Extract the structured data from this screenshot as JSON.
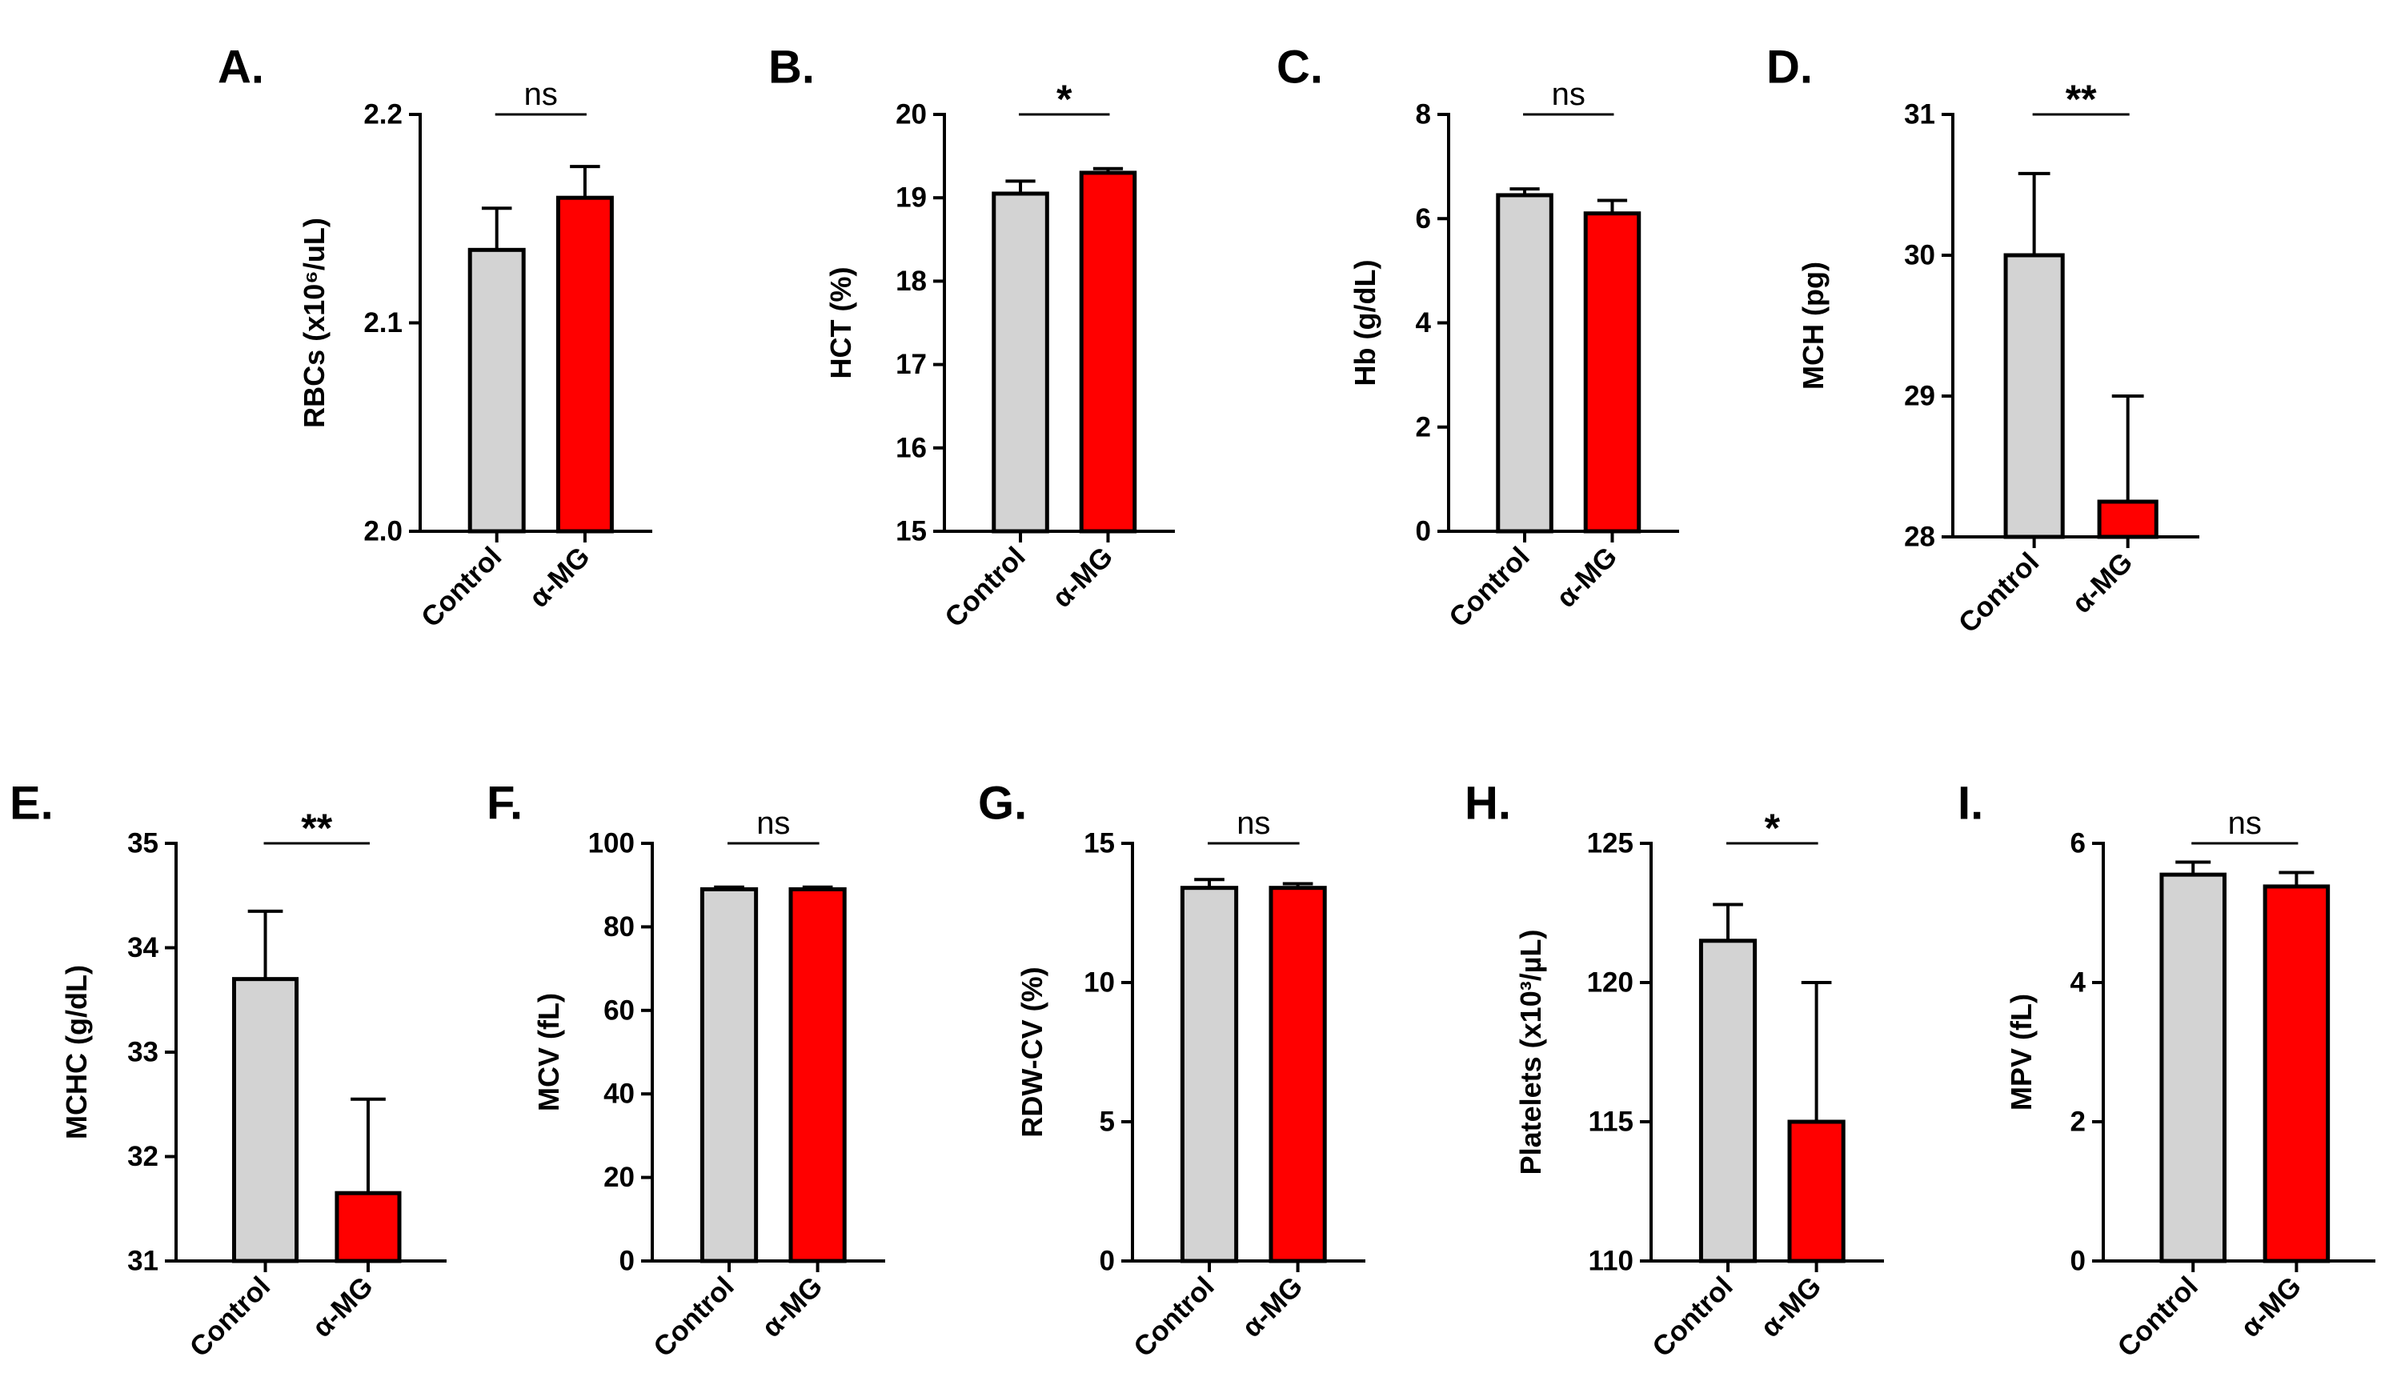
{
  "colors": {
    "control": "#d3d3d3",
    "treatment": "#ff0000",
    "stroke": "#000000"
  },
  "chart_data": [
    {
      "type": "bar",
      "panel": "A.",
      "ylabel": "RBCs (x10⁶/uL)",
      "ylim": [
        2.0,
        2.2
      ],
      "yticks": [
        "2.0",
        "2.1",
        "2.2"
      ],
      "categories": [
        "Control",
        "α-MG"
      ],
      "values": [
        2.135,
        2.16
      ],
      "errors": [
        0.02,
        0.015
      ],
      "significance": "ns"
    },
    {
      "type": "bar",
      "panel": "B.",
      "ylabel": "HCT (%)",
      "ylim": [
        15,
        20
      ],
      "yticks": [
        "15",
        "16",
        "17",
        "18",
        "19",
        "20"
      ],
      "categories": [
        "Control",
        "α-MG"
      ],
      "values": [
        19.05,
        19.3
      ],
      "errors": [
        0.15,
        0.05
      ],
      "significance": "*"
    },
    {
      "type": "bar",
      "panel": "C.",
      "ylabel": "Hb (g/dL)",
      "ylim": [
        0,
        8
      ],
      "yticks": [
        "0",
        "2",
        "4",
        "6",
        "8"
      ],
      "categories": [
        "Control",
        "α-MG"
      ],
      "values": [
        6.45,
        6.1
      ],
      "errors": [
        0.12,
        0.25
      ],
      "significance": "ns"
    },
    {
      "type": "bar",
      "panel": "D.",
      "ylabel": "MCH (pg)",
      "ylim": [
        28,
        31
      ],
      "yticks": [
        "28",
        "29",
        "30",
        "31"
      ],
      "categories": [
        "Control",
        "α-MG"
      ],
      "values": [
        30.0,
        28.25
      ],
      "errors": [
        0.58,
        0.75
      ],
      "significance": "**"
    },
    {
      "type": "bar",
      "panel": "E.",
      "ylabel": "MCHC (g/dL)",
      "ylim": [
        31,
        35
      ],
      "yticks": [
        "31",
        "32",
        "33",
        "34",
        "35"
      ],
      "categories": [
        "Control",
        "α-MG"
      ],
      "values": [
        33.7,
        31.65
      ],
      "errors": [
        0.65,
        0.9
      ],
      "significance": "**"
    },
    {
      "type": "bar",
      "panel": "F.",
      "ylabel": "MCV (fL)",
      "ylim": [
        0,
        100
      ],
      "yticks": [
        "0",
        "20",
        "40",
        "60",
        "80",
        "100"
      ],
      "categories": [
        "Control",
        "α-MG"
      ],
      "values": [
        89.0,
        89.0
      ],
      "errors": [
        0.5,
        0.5
      ],
      "significance": "ns"
    },
    {
      "type": "bar",
      "panel": "G.",
      "ylabel": "RDW-CV (%)",
      "ylim": [
        0,
        15
      ],
      "yticks": [
        "0",
        "5",
        "10",
        "15"
      ],
      "categories": [
        "Control",
        "α-MG"
      ],
      "values": [
        13.4,
        13.4
      ],
      "errors": [
        0.3,
        0.15
      ],
      "significance": "ns"
    },
    {
      "type": "bar",
      "panel": "H.",
      "ylabel": "Platelets (x10³/µL)",
      "ylim": [
        110,
        125
      ],
      "yticks": [
        "110",
        "115",
        "120",
        "125"
      ],
      "categories": [
        "Control",
        "α-MG"
      ],
      "values": [
        121.5,
        115.0
      ],
      "errors": [
        1.3,
        5.0
      ],
      "significance": "*"
    },
    {
      "type": "bar",
      "panel": "I.",
      "ylabel": "MPV (fL)",
      "ylim": [
        0,
        6
      ],
      "yticks": [
        "0",
        "2",
        "4",
        "6"
      ],
      "categories": [
        "Control",
        "α-MG"
      ],
      "values": [
        5.55,
        5.38
      ],
      "errors": [
        0.18,
        0.2
      ],
      "significance": "ns"
    }
  ]
}
